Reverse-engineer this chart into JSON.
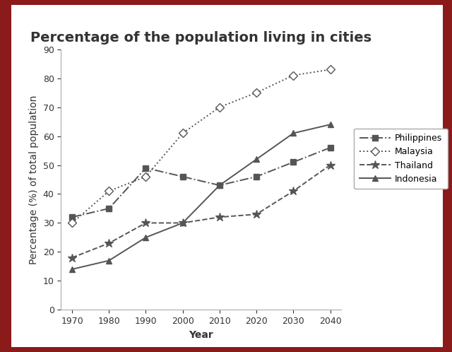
{
  "title": "Percentage of the population living in cities",
  "xlabel": "Year",
  "ylabel": "Percentage (%) of total population",
  "years": [
    1970,
    1980,
    1990,
    2000,
    2010,
    2020,
    2030,
    2040
  ],
  "series": {
    "Philippines": {
      "values": [
        32,
        35,
        49,
        46,
        43,
        46,
        51,
        56
      ],
      "linestyle": "-.",
      "marker": "s",
      "color": "#555555",
      "markersize": 6,
      "markerfacecolor": "#555555"
    },
    "Malaysia": {
      "values": [
        30,
        41,
        46,
        61,
        70,
        75,
        81,
        83
      ],
      "linestyle": ":",
      "marker": "D",
      "color": "#555555",
      "markersize": 6,
      "markerfacecolor": "white"
    },
    "Thailand": {
      "values": [
        18,
        23,
        30,
        30,
        32,
        33,
        41,
        50
      ],
      "linestyle": "--",
      "marker": "*",
      "color": "#555555",
      "markersize": 9,
      "markerfacecolor": "#555555"
    },
    "Indonesia": {
      "values": [
        14,
        17,
        25,
        30,
        43,
        52,
        61,
        64
      ],
      "linestyle": "-",
      "marker": "^",
      "color": "#555555",
      "markersize": 6,
      "markerfacecolor": "#555555"
    }
  },
  "ylim": [
    0,
    90
  ],
  "yticks": [
    0,
    10,
    20,
    30,
    40,
    50,
    60,
    70,
    80,
    90
  ],
  "background_color": "#ffffff",
  "border_color": "#8b1a1a",
  "title_fontsize": 14,
  "axis_label_fontsize": 10,
  "tick_fontsize": 9,
  "legend_fontsize": 9,
  "linewidth": 1.4
}
